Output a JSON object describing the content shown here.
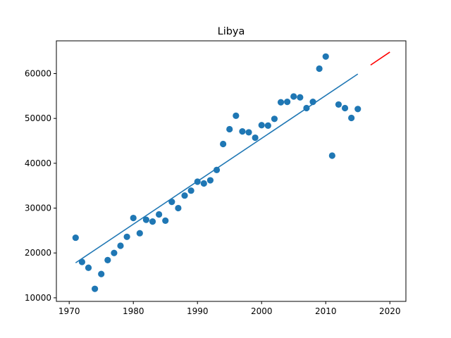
{
  "chart_data": {
    "type": "scatter",
    "title": "Libya",
    "xlabel": "",
    "ylabel": "",
    "xlim": [
      1968,
      2022.5
    ],
    "ylim": [
      9200,
      67300
    ],
    "x_ticks": [
      1970,
      1980,
      1990,
      2000,
      2010,
      2020
    ],
    "y_ticks": [
      10000,
      20000,
      30000,
      40000,
      50000,
      60000
    ],
    "x_tick_labels": [
      "1970",
      "1980",
      "1990",
      "2000",
      "2010",
      "2020"
    ],
    "y_tick_labels": [
      "10000",
      "20000",
      "30000",
      "40000",
      "50000",
      "60000"
    ],
    "grid": false,
    "legend": "none",
    "colors": {
      "points": "#1f77b4",
      "trend": "#1f77b4",
      "forecast": "#ff0000",
      "axes": "#000000"
    },
    "series": [
      {
        "type": "scatter",
        "x": [
          1971,
          1972,
          1973,
          1974,
          1975,
          1976,
          1977,
          1978,
          1979,
          1980,
          1981,
          1982,
          1983,
          1984,
          1985,
          1986,
          1987,
          1988,
          1989,
          1990,
          1991,
          1992,
          1993,
          1994,
          1995,
          1996,
          1997,
          1998,
          1999,
          2000,
          2001,
          2002,
          2003,
          2004,
          2005,
          2006,
          2007,
          2008,
          2009,
          2010,
          2011,
          2012,
          2013,
          2014,
          2015
        ],
        "y": [
          23400,
          18000,
          16700,
          12000,
          15300,
          18400,
          20000,
          21600,
          23600,
          27800,
          24400,
          27400,
          27000,
          28600,
          27200,
          31400,
          30000,
          32800,
          33900,
          35900,
          35500,
          36200,
          38500,
          44300,
          47600,
          50600,
          47100,
          46900,
          45700,
          48500,
          48400,
          49900,
          53600,
          53700,
          54900,
          54700,
          52300,
          53700,
          61100,
          63800,
          41700,
          53100,
          52300,
          50100,
          52100
        ]
      },
      {
        "type": "line",
        "x": [
          1971,
          2015
        ],
        "y": [
          17800,
          59900
        ]
      },
      {
        "type": "line",
        "x": [
          2017,
          2020
        ],
        "y": [
          61900,
          64800
        ]
      }
    ]
  }
}
